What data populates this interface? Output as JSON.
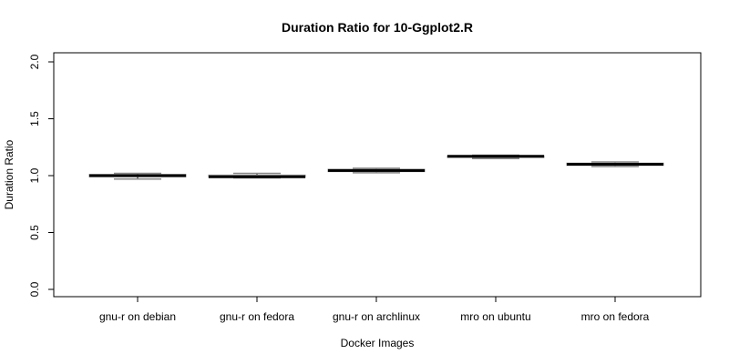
{
  "chart_data": {
    "type": "box",
    "title": "Duration Ratio for 10-Ggplot2.R",
    "xlabel": "Docker Images",
    "ylabel": "Duration Ratio",
    "categories": [
      "gnu-r on debian",
      "gnu-r on fedora",
      "gnu-r on archlinux",
      "mro on ubuntu",
      "mro on fedora"
    ],
    "y_ticks": [
      "0.0",
      "0.5",
      "1.0",
      "1.5",
      "2.0"
    ],
    "ylim": [
      0,
      2
    ],
    "grid": false,
    "boxes": [
      {
        "min": 0.97,
        "q1": 0.99,
        "median": 1.0,
        "q3": 1.01,
        "max": 1.02
      },
      {
        "min": 0.98,
        "q1": 0.985,
        "median": 0.99,
        "q3": 1.005,
        "max": 1.02
      },
      {
        "min": 1.025,
        "q1": 1.035,
        "median": 1.045,
        "q3": 1.055,
        "max": 1.065
      },
      {
        "min": 1.15,
        "q1": 1.16,
        "median": 1.17,
        "q3": 1.175,
        "max": 1.18
      },
      {
        "min": 1.08,
        "q1": 1.09,
        "median": 1.1,
        "q3": 1.11,
        "max": 1.12
      }
    ],
    "box_color": "#888888",
    "median_color": "#000000"
  }
}
